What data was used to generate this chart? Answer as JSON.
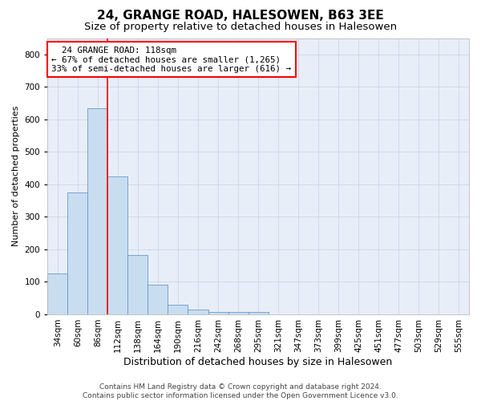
{
  "title": "24, GRANGE ROAD, HALESOWEN, B63 3EE",
  "subtitle": "Size of property relative to detached houses in Halesowen",
  "xlabel": "Distribution of detached houses by size in Halesowen",
  "ylabel": "Number of detached properties",
  "footer_line1": "Contains HM Land Registry data © Crown copyright and database right 2024.",
  "footer_line2": "Contains public sector information licensed under the Open Government Licence v3.0.",
  "bar_labels": [
    "34sqm",
    "60sqm",
    "86sqm",
    "112sqm",
    "138sqm",
    "164sqm",
    "190sqm",
    "216sqm",
    "242sqm",
    "268sqm",
    "295sqm",
    "321sqm",
    "347sqm",
    "373sqm",
    "399sqm",
    "425sqm",
    "451sqm",
    "477sqm",
    "503sqm",
    "529sqm",
    "555sqm"
  ],
  "bar_values": [
    125,
    375,
    635,
    425,
    183,
    90,
    30,
    15,
    8,
    8,
    8,
    0,
    0,
    0,
    0,
    0,
    0,
    0,
    0,
    0,
    0
  ],
  "bar_color": "#c9ddf0",
  "bar_edge_color": "#6699cc",
  "property_line_x": 2.5,
  "property_line_color": "red",
  "annotation_line1": "  24 GRANGE ROAD: 118sqm",
  "annotation_line2": "← 67% of detached houses are smaller (1,265)",
  "annotation_line3": "33% of semi-detached houses are larger (616) →",
  "annotation_box_color": "red",
  "ylim": [
    0,
    850
  ],
  "yticks": [
    0,
    100,
    200,
    300,
    400,
    500,
    600,
    700,
    800
  ],
  "grid_color": "#ccd5e8",
  "bg_color": "#e8eef8",
  "title_fontsize": 11,
  "subtitle_fontsize": 9.5,
  "ylabel_fontsize": 8,
  "xlabel_fontsize": 9,
  "tick_fontsize": 7.5,
  "annotation_fontsize": 7.8,
  "footer_fontsize": 6.5
}
